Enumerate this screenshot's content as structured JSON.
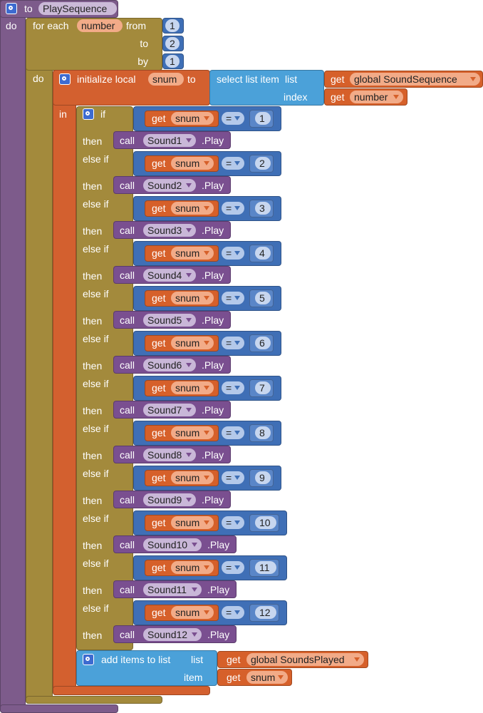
{
  "procedure": {
    "keyword": "to",
    "name": "PlaySequence",
    "do": "do"
  },
  "for_each": {
    "keyword": "for each",
    "variable": "number",
    "from_label": "from",
    "from": 1,
    "to_label": "to",
    "to": 2,
    "by_label": "by",
    "by": 1,
    "do": "do"
  },
  "initialize_local": {
    "keyword": "initialize local",
    "variable": "snum",
    "to": "to",
    "in": "in",
    "select_list_item": {
      "keyword": "select list item",
      "list_label": "list",
      "index_label": "index",
      "list_get": {
        "get": "get",
        "variable": "global SoundSequence"
      },
      "index_get": {
        "get": "get",
        "variable": "number"
      }
    }
  },
  "if_block": {
    "branches": [
      {
        "keyword": "if",
        "get": "get",
        "variable": "snum",
        "operator": "=",
        "value": 1,
        "then": "then",
        "call": "call",
        "component": "Sound1",
        "method": ".Play"
      },
      {
        "keyword": "else if",
        "get": "get",
        "variable": "snum",
        "operator": "=",
        "value": 2,
        "then": "then",
        "call": "call",
        "component": "Sound2",
        "method": ".Play"
      },
      {
        "keyword": "else if",
        "get": "get",
        "variable": "snum",
        "operator": "=",
        "value": 3,
        "then": "then",
        "call": "call",
        "component": "Sound3",
        "method": ".Play"
      },
      {
        "keyword": "else if",
        "get": "get",
        "variable": "snum",
        "operator": "=",
        "value": 4,
        "then": "then",
        "call": "call",
        "component": "Sound4",
        "method": ".Play"
      },
      {
        "keyword": "else if",
        "get": "get",
        "variable": "snum",
        "operator": "=",
        "value": 5,
        "then": "then",
        "call": "call",
        "component": "Sound5",
        "method": ".Play"
      },
      {
        "keyword": "else if",
        "get": "get",
        "variable": "snum",
        "operator": "=",
        "value": 6,
        "then": "then",
        "call": "call",
        "component": "Sound6",
        "method": ".Play"
      },
      {
        "keyword": "else if",
        "get": "get",
        "variable": "snum",
        "operator": "=",
        "value": 7,
        "then": "then",
        "call": "call",
        "component": "Sound7",
        "method": ".Play"
      },
      {
        "keyword": "else if",
        "get": "get",
        "variable": "snum",
        "operator": "=",
        "value": 8,
        "then": "then",
        "call": "call",
        "component": "Sound8",
        "method": ".Play"
      },
      {
        "keyword": "else if",
        "get": "get",
        "variable": "snum",
        "operator": "=",
        "value": 9,
        "then": "then",
        "call": "call",
        "component": "Sound9",
        "method": ".Play"
      },
      {
        "keyword": "else if",
        "get": "get",
        "variable": "snum",
        "operator": "=",
        "value": 10,
        "then": "then",
        "call": "call",
        "component": "Sound10",
        "method": ".Play"
      },
      {
        "keyword": "else if",
        "get": "get",
        "variable": "snum",
        "operator": "=",
        "value": 11,
        "then": "then",
        "call": "call",
        "component": "Sound11",
        "method": ".Play"
      },
      {
        "keyword": "else if",
        "get": "get",
        "variable": "snum",
        "operator": "=",
        "value": 12,
        "then": "then",
        "call": "call",
        "component": "Sound12",
        "method": ".Play"
      }
    ]
  },
  "add_items": {
    "keyword": "add items to list",
    "list_label": "list",
    "item_label": "item",
    "list_get": {
      "get": "get",
      "variable": "global SoundsPlayed"
    },
    "item_get": {
      "get": "get",
      "variable": "snum"
    }
  }
}
